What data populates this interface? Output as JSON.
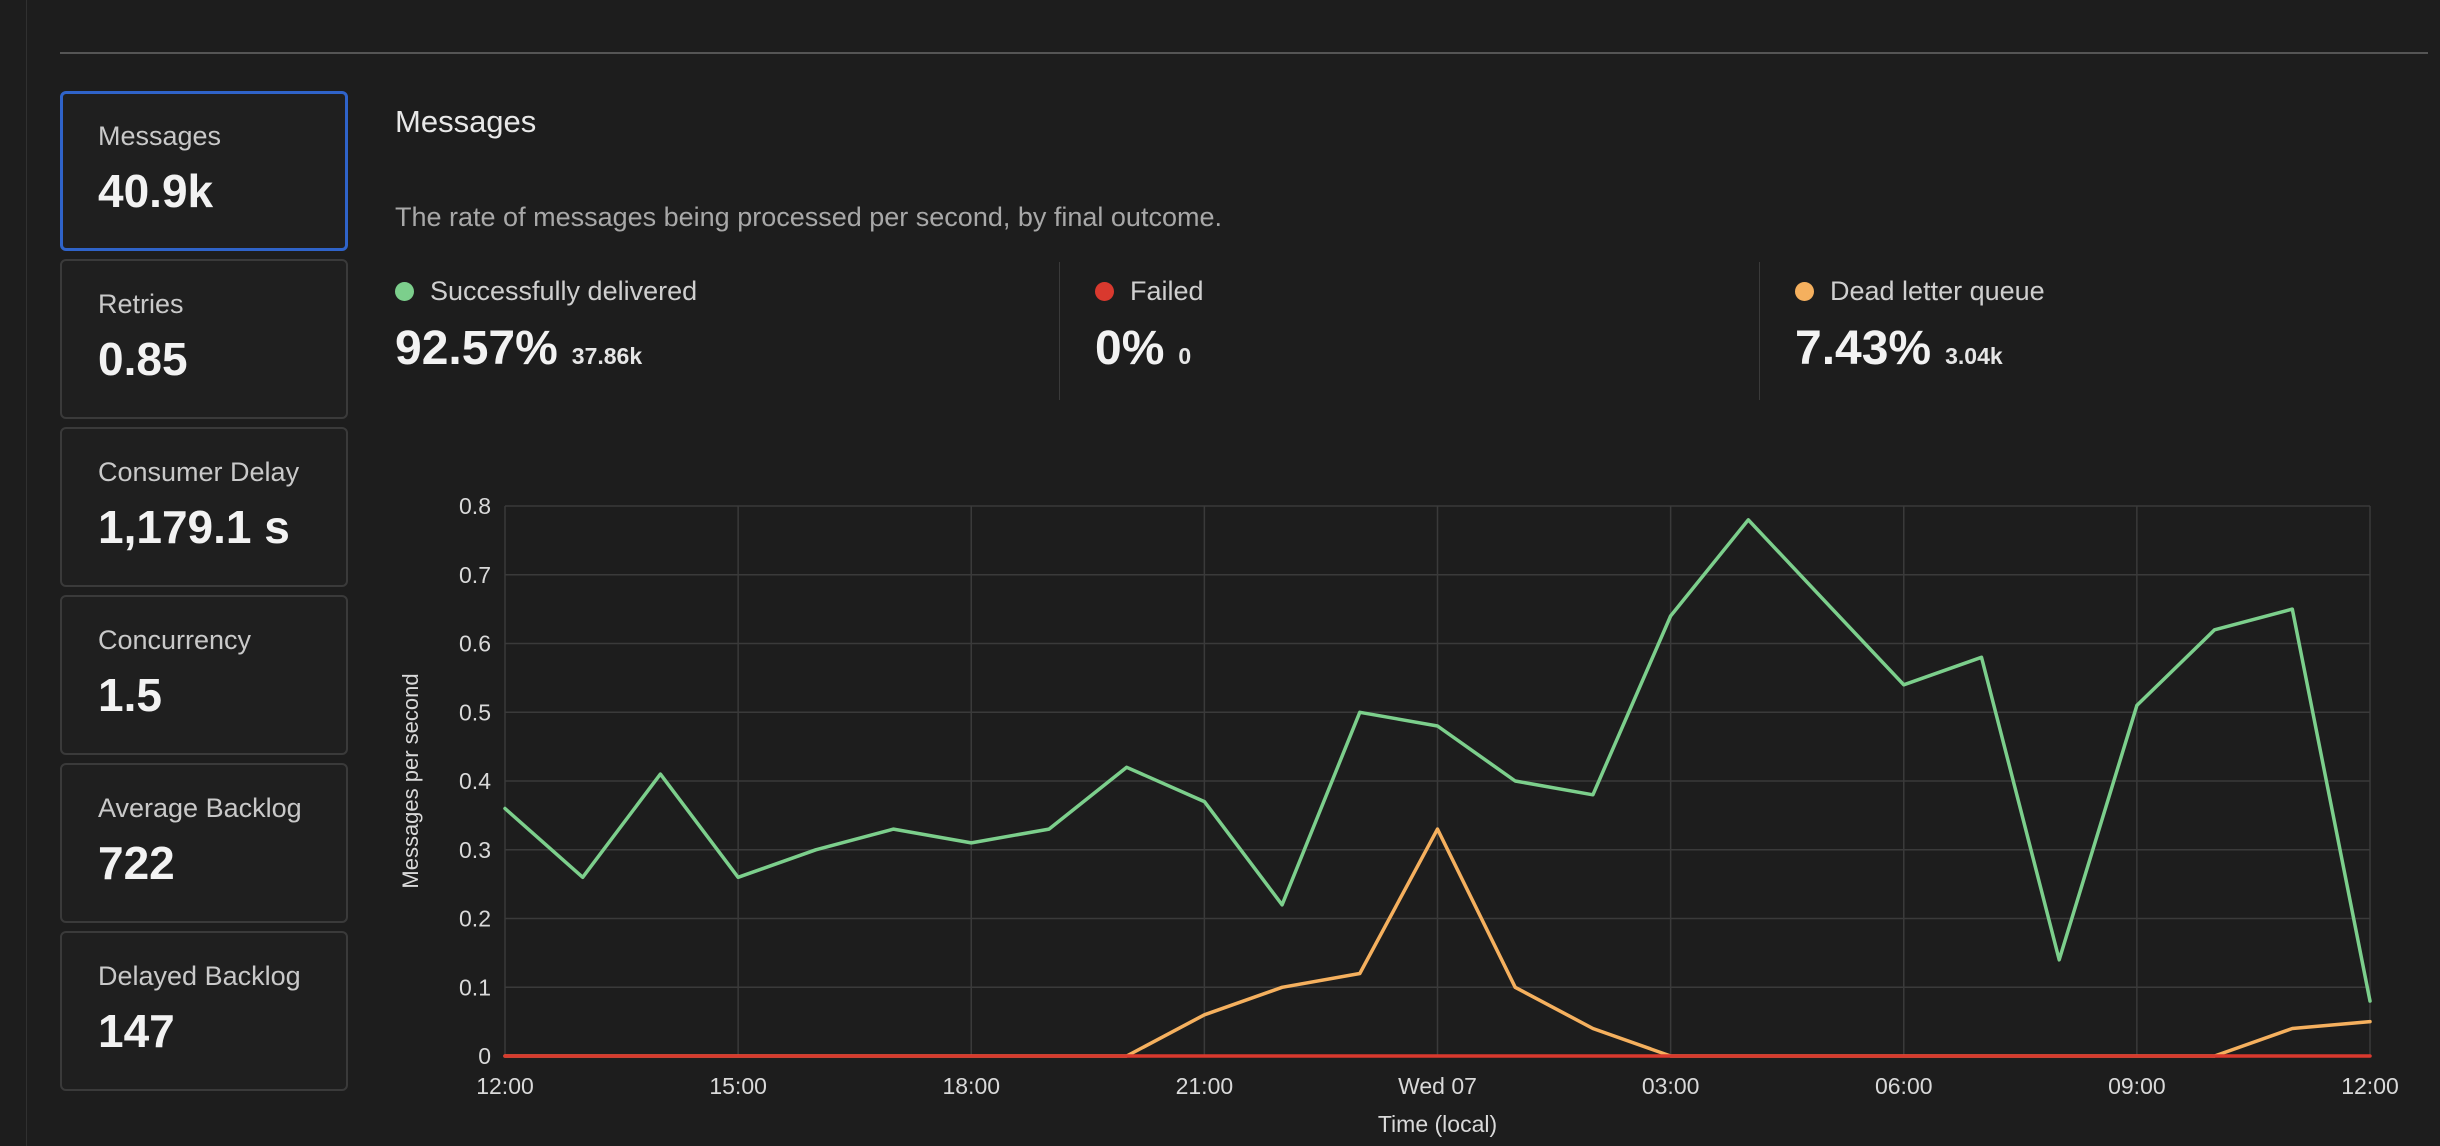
{
  "sidebar": {
    "cards": [
      {
        "label": "Messages",
        "value": "40.9k"
      },
      {
        "label": "Retries",
        "value": "0.85"
      },
      {
        "label": "Consumer Delay",
        "value": "1,179.1 s"
      },
      {
        "label": "Concurrency",
        "value": "1.5"
      },
      {
        "label": "Average Backlog",
        "value": "722"
      },
      {
        "label": "Delayed Backlog",
        "value": "147"
      }
    ]
  },
  "main": {
    "title": "Messages",
    "description": "The rate of messages being processed per second, by final outcome."
  },
  "stats": [
    {
      "label": "Successfully delivered",
      "percent": "92.57%",
      "count": "37.86k",
      "color": "#7ccf8c"
    },
    {
      "label": "Failed",
      "percent": "0%",
      "count": "0",
      "color": "#d9392e"
    },
    {
      "label": "Dead letter queue",
      "percent": "7.43%",
      "count": "3.04k",
      "color": "#f5b05e"
    }
  ],
  "chart_data": {
    "type": "line",
    "xlabel": "Time (local)",
    "ylabel": "Messages per second",
    "ylim": [
      0,
      0.8
    ],
    "yticks": [
      "0",
      "0.1",
      "0.2",
      "0.3",
      "0.4",
      "0.5",
      "0.6",
      "0.7",
      "0.8"
    ],
    "xticks": [
      "12:00",
      "15:00",
      "18:00",
      "21:00",
      "Wed 07",
      "03:00",
      "06:00",
      "09:00",
      "12:00"
    ],
    "x": [
      "12:00",
      "13:00",
      "14:00",
      "15:00",
      "16:00",
      "17:00",
      "18:00",
      "19:00",
      "20:00",
      "21:00",
      "22:00",
      "23:00",
      "Wed 07",
      "01:00",
      "02:00",
      "03:00",
      "04:00",
      "05:00",
      "06:00",
      "07:00",
      "08:00",
      "09:00",
      "10:00",
      "11:00",
      "12:00"
    ],
    "grid": true,
    "series": [
      {
        "name": "Successfully delivered",
        "color": "#7ccf8c",
        "values": [
          0.36,
          0.26,
          0.41,
          0.26,
          0.3,
          0.33,
          0.31,
          0.33,
          0.42,
          0.37,
          0.22,
          0.5,
          0.48,
          0.4,
          0.38,
          0.64,
          0.78,
          0.66,
          0.54,
          0.58,
          0.14,
          0.51,
          0.62,
          0.65,
          0.08
        ]
      },
      {
        "name": "Failed",
        "color": "#d9392e",
        "values": [
          0,
          0,
          0,
          0,
          0,
          0,
          0,
          0,
          0,
          0,
          0,
          0,
          0,
          0,
          0,
          0,
          0,
          0,
          0,
          0,
          0,
          0,
          0,
          0,
          0
        ]
      },
      {
        "name": "Dead letter queue",
        "color": "#f5b05e",
        "values": [
          0,
          0,
          0,
          0,
          0,
          0,
          0,
          0,
          0,
          0.06,
          0.1,
          0.12,
          0.33,
          0.1,
          0.04,
          0,
          0,
          0,
          0,
          0,
          0,
          0,
          0,
          0.04,
          0.05
        ]
      }
    ]
  }
}
